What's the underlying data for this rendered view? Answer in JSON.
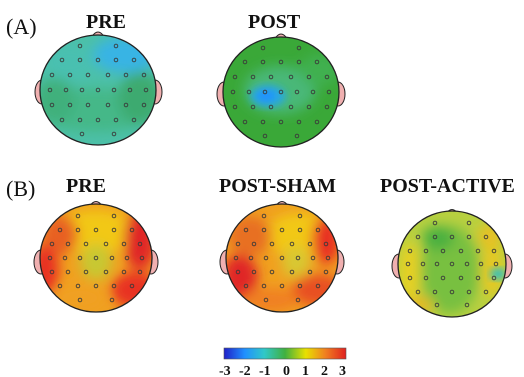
{
  "panels": [
    {
      "label": "(A)",
      "maps": [
        {
          "title": "PRE"
        },
        {
          "title": "POST"
        }
      ]
    },
    {
      "label": "(B)",
      "maps": [
        {
          "title": "PRE"
        },
        {
          "title": "POST-SHAM"
        },
        {
          "title": "POST-ACTIVE"
        }
      ]
    }
  ],
  "colorbar": {
    "ticks": [
      "-3",
      "-2",
      "-1",
      "0",
      "1",
      "2",
      "3"
    ],
    "min": -3,
    "max": 3
  },
  "colors": {
    "colormap": [
      "#2020c8",
      "#2090ff",
      "#30c8c8",
      "#40b040",
      "#e8e000",
      "#f08020",
      "#e02020"
    ]
  }
}
